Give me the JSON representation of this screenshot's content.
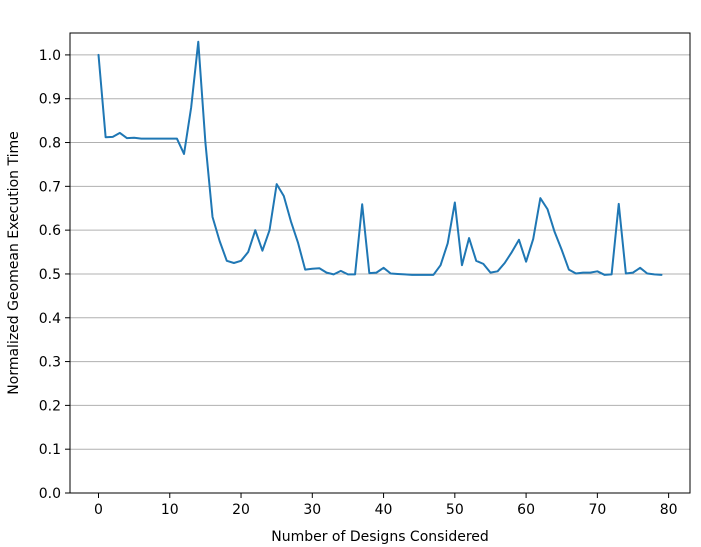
{
  "chart_data": {
    "type": "line",
    "title": "",
    "xlabel": "Number of Designs Considered",
    "ylabel": "Normalized Geomean Execution Time",
    "xlim": [
      -4,
      83
    ],
    "ylim": [
      0.0,
      1.05
    ],
    "xticks": [
      0,
      10,
      20,
      30,
      40,
      50,
      60,
      70,
      80
    ],
    "xtick_labels": [
      "0",
      "10",
      "20",
      "30",
      "40",
      "50",
      "60",
      "70",
      "80"
    ],
    "yticks": [
      0.0,
      0.1,
      0.2,
      0.3,
      0.4,
      0.5,
      0.6,
      0.7,
      0.8,
      0.9,
      1.0
    ],
    "ytick_labels": [
      "0.0",
      "0.1",
      "0.2",
      "0.3",
      "0.4",
      "0.5",
      "0.6",
      "0.7",
      "0.8",
      "0.9",
      "1.0"
    ],
    "grid": {
      "y": true,
      "x": false
    },
    "legend": "none",
    "colors": {
      "line": "#1f77b4",
      "grid": "#b0b0b0",
      "axes": "#000000"
    },
    "series": [
      {
        "x": [
          0,
          1,
          2,
          3,
          4,
          5,
          6,
          7,
          8,
          9,
          10,
          11,
          12,
          13,
          14,
          15,
          16,
          17,
          18,
          19,
          20,
          21,
          22,
          23,
          24,
          25,
          26,
          27,
          28,
          29,
          30,
          31,
          32,
          33,
          34,
          35,
          36,
          37,
          38,
          39,
          40,
          41,
          42,
          43,
          44,
          45,
          46,
          47,
          48,
          49,
          50,
          51,
          52,
          53,
          54,
          55,
          56,
          57,
          58,
          59,
          60,
          61,
          62,
          63,
          64,
          65,
          66,
          67,
          68,
          69,
          70,
          71,
          72,
          73,
          74,
          75,
          76,
          77,
          78,
          79
        ],
        "values": [
          1.0,
          0.812,
          0.813,
          0.822,
          0.81,
          0.811,
          0.809,
          0.809,
          0.809,
          0.809,
          0.809,
          0.809,
          0.774,
          0.88,
          1.03,
          0.8,
          0.63,
          0.575,
          0.53,
          0.525,
          0.53,
          0.55,
          0.6,
          0.553,
          0.6,
          0.705,
          0.678,
          0.62,
          0.571,
          0.51,
          0.512,
          0.513,
          0.503,
          0.499,
          0.507,
          0.499,
          0.499,
          0.659,
          0.502,
          0.503,
          0.514,
          0.501,
          0.5,
          0.499,
          0.498,
          0.498,
          0.498,
          0.498,
          0.52,
          0.57,
          0.663,
          0.52,
          0.582,
          0.53,
          0.523,
          0.503,
          0.506,
          0.525,
          0.55,
          0.578,
          0.528,
          0.58,
          0.673,
          0.648,
          0.596,
          0.555,
          0.51,
          0.501,
          0.503,
          0.503,
          0.506,
          0.498,
          0.499,
          0.66,
          0.501,
          0.503,
          0.514,
          0.501,
          0.499,
          0.498
        ]
      }
    ]
  }
}
